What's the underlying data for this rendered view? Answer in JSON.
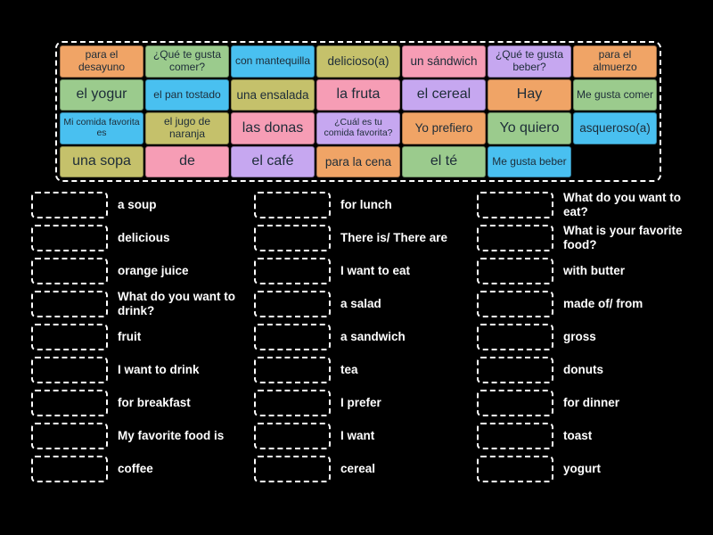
{
  "palette": {
    "background": "#000000",
    "tile_text": "#1d2c38",
    "match_text": "#ffffff",
    "dashed_border": "#ffffff",
    "tile_colors": {
      "orange": "#F0A466",
      "green": "#9BCB8D",
      "blue": "#49C0F0",
      "khaki": "#C5C16B",
      "pink": "#F69DB5",
      "purple": "#C6A7F0"
    }
  },
  "tile_bank": {
    "tiles": [
      {
        "label": "para el desayuno",
        "color": "orange"
      },
      {
        "label": "¿Qué te gusta comer?",
        "color": "green"
      },
      {
        "label": "con mantequilla",
        "color": "blue"
      },
      {
        "label": "delicioso(a)",
        "color": "khaki"
      },
      {
        "label": "un sándwich",
        "color": "pink"
      },
      {
        "label": "¿Qué te gusta beber?",
        "color": "purple"
      },
      {
        "label": "para el almuerzo",
        "color": "orange"
      },
      {
        "label": "el yogur",
        "color": "green"
      },
      {
        "label": "el pan tostado",
        "color": "blue"
      },
      {
        "label": "una ensalada",
        "color": "khaki"
      },
      {
        "label": "la fruta",
        "color": "pink"
      },
      {
        "label": "el cereal",
        "color": "purple"
      },
      {
        "label": "Hay",
        "color": "orange"
      },
      {
        "label": "Me gusta comer",
        "color": "green"
      },
      {
        "label": "Mi comida favorita es",
        "color": "blue"
      },
      {
        "label": "el jugo de naranja",
        "color": "khaki"
      },
      {
        "label": "las donas",
        "color": "pink"
      },
      {
        "label": "¿Cuál es tu comida favorita?",
        "color": "purple"
      },
      {
        "label": "Yo prefiero",
        "color": "orange"
      },
      {
        "label": "Yo quiero",
        "color": "green"
      },
      {
        "label": "asqueroso(a)",
        "color": "blue"
      },
      {
        "label": "una sopa",
        "color": "khaki"
      },
      {
        "label": "de",
        "color": "pink"
      },
      {
        "label": "el café",
        "color": "purple"
      },
      {
        "label": "para la cena",
        "color": "orange"
      },
      {
        "label": "el té",
        "color": "green"
      },
      {
        "label": "Me gusta beber",
        "color": "blue"
      }
    ]
  },
  "match_columns": [
    {
      "items": [
        "a soup",
        "delicious",
        "orange juice",
        "What do you want to drink?",
        "fruit",
        "I want to drink",
        "for breakfast",
        "My favorite food is",
        "coffee"
      ]
    },
    {
      "items": [
        "for lunch",
        "There is/ There are",
        "I want to eat",
        "a salad",
        "a sandwich",
        "tea",
        "I prefer",
        "I want",
        "cereal"
      ]
    },
    {
      "items": [
        "What do you want to eat?",
        "What is your favorite food?",
        "with butter",
        "made of/ from",
        "gross",
        "donuts",
        "for dinner",
        "toast",
        "yogurt"
      ]
    }
  ]
}
